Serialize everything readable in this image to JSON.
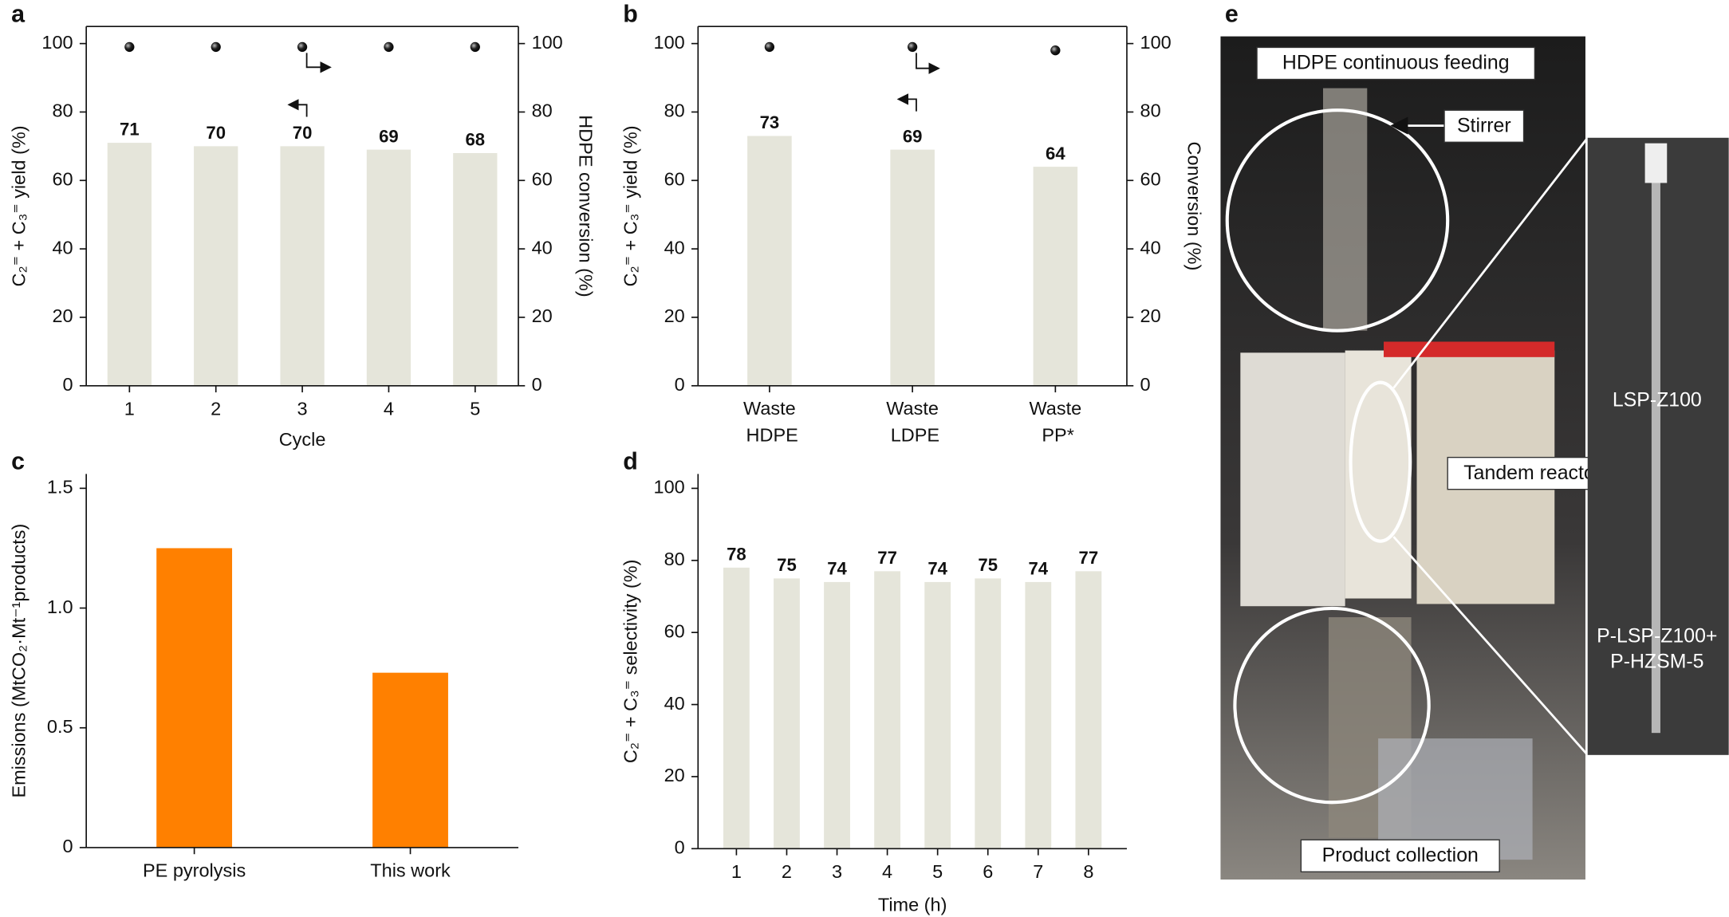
{
  "chart_data": [
    {
      "type": "bar",
      "panel": "a",
      "xlabel": "Cycle",
      "ylabel": "C₂⁼ + C₃⁼ yield (%)",
      "y2label": "HDPE conversion (%)",
      "categories": [
        "1",
        "2",
        "3",
        "4",
        "5"
      ],
      "series": [
        {
          "type": "bar",
          "color": "#e5e5da",
          "values": [
            71,
            70,
            70,
            69,
            68
          ]
        },
        {
          "type": "scatter",
          "axis": "y2",
          "color": "#111111",
          "values": [
            99,
            99,
            99,
            99,
            99
          ]
        }
      ],
      "ylim": [
        0,
        105
      ],
      "yticks": [
        0,
        20,
        40,
        60,
        80,
        100
      ],
      "y2lim": [
        0,
        105
      ],
      "y2ticks": [
        0,
        20,
        40,
        60,
        80,
        100
      ]
    },
    {
      "type": "bar",
      "panel": "b",
      "ylabel": "C₂⁼ + C₃⁼ yield (%)",
      "y2label": "Conversion (%)",
      "categories": [
        "Waste HDPE",
        "Waste LDPE",
        "Waste PP*"
      ],
      "series": [
        {
          "type": "bar",
          "color": "#e5e5da",
          "values": [
            73,
            69,
            64
          ]
        },
        {
          "type": "scatter",
          "axis": "y2",
          "color": "#111111",
          "values": [
            99,
            99,
            98
          ]
        }
      ],
      "ylim": [
        0,
        105
      ],
      "yticks": [
        0,
        20,
        40,
        60,
        80,
        100
      ],
      "y2lim": [
        0,
        105
      ],
      "y2ticks": [
        0,
        20,
        40,
        60,
        80,
        100
      ]
    },
    {
      "type": "bar",
      "panel": "c",
      "ylabel": "Emissions (MtCO₂·Mt⁻¹products)",
      "categories": [
        "PE pyrolysis",
        "This work"
      ],
      "series": [
        {
          "type": "bar",
          "color": "#ff8000",
          "values": [
            1.25,
            0.73
          ]
        }
      ],
      "ylim": [
        0,
        1.56
      ],
      "yticks": [
        0,
        0.5,
        {
          "value": 1,
          "label": "1.0"
        },
        1.5
      ]
    },
    {
      "type": "bar",
      "panel": "d",
      "xlabel": "Time (h)",
      "ylabel": "C₂⁼ + C₃⁼ selectivity (%)",
      "categories": [
        "1",
        "2",
        "3",
        "4",
        "5",
        "6",
        "7",
        "8"
      ],
      "series": [
        {
          "type": "bar",
          "color": "#e5e5da",
          "values": [
            78,
            75,
            74,
            77,
            74,
            75,
            74,
            77
          ]
        }
      ],
      "ylim": [
        0,
        104
      ],
      "yticks": [
        0,
        20,
        40,
        60,
        80,
        100
      ]
    }
  ],
  "photo": {
    "panel": "e",
    "labels": [
      "HDPE continuous feeding",
      "Stirrer",
      "Tandem reactor",
      "Product collection"
    ],
    "inset_labels": [
      "LSP-Z100",
      "P-LSP-Z100+",
      "P-HZSM-5"
    ]
  }
}
